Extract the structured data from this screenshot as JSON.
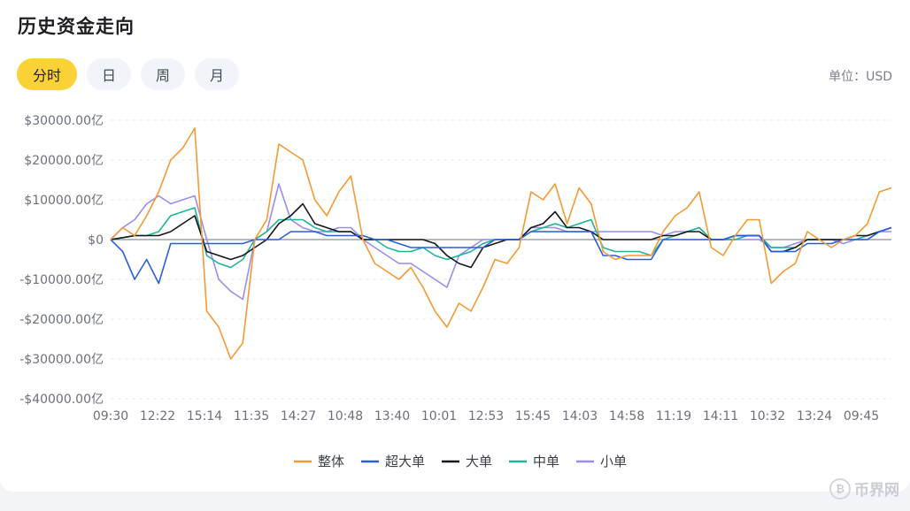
{
  "header": {
    "title": "历史资金走向",
    "unit": "单位：USD"
  },
  "tabs": [
    {
      "label": "分时",
      "active": true
    },
    {
      "label": "日",
      "active": false
    },
    {
      "label": "周",
      "active": false
    },
    {
      "label": "月",
      "active": false
    }
  ],
  "watermark": {
    "text": "币界网",
    "icon": "bitcoin-coin-icon"
  },
  "colors": {
    "accent": "#fbd235"
  },
  "chart_data": {
    "type": "line",
    "title": "",
    "xlabel": "",
    "ylabel": "",
    "ylim": [
      -40000,
      30000
    ],
    "y_ticks": [
      30000,
      20000,
      10000,
      0,
      -10000,
      -20000,
      -30000,
      -40000
    ],
    "y_tick_labels": [
      "$30000.00亿",
      "$20000.00亿",
      "$10000.00亿",
      "$0",
      "-$10000.00亿",
      "-$20000.00亿",
      "-$30000.00亿",
      "-$40000.00亿"
    ],
    "x_tick_labels": [
      "09:30",
      "12:22",
      "15:14",
      "11:35",
      "14:27",
      "10:48",
      "13:40",
      "10:01",
      "12:53",
      "15:45",
      "14:03",
      "14:58",
      "11:19",
      "14:11",
      "10:32",
      "13:24",
      "09:45"
    ],
    "grid": true,
    "legend_position": "bottom",
    "x_samples": 66,
    "series": [
      {
        "name": "整体",
        "color": "#f59a33",
        "values": [
          0,
          3000,
          1000,
          6000,
          12000,
          20000,
          23000,
          28000,
          -18000,
          -22000,
          -30000,
          -26000,
          0,
          5000,
          24000,
          22000,
          20000,
          10000,
          6000,
          12000,
          16000,
          0,
          -6000,
          -8000,
          -10000,
          -7000,
          -12000,
          -18000,
          -22000,
          -16000,
          -18000,
          -12000,
          -5000,
          -6000,
          -2000,
          12000,
          10000,
          14000,
          4000,
          13000,
          9000,
          -3000,
          -5000,
          -4000,
          -4000,
          -4000,
          2000,
          6000,
          8000,
          12000,
          -2000,
          -4000,
          1000,
          5000,
          5000,
          -11000,
          -8000,
          -6000,
          2000,
          0,
          -2000,
          0,
          1000,
          4000,
          12000,
          13000
        ]
      },
      {
        "name": "超大单",
        "color": "#2b5fd9",
        "values": [
          0,
          -3000,
          -10000,
          -5000,
          -11000,
          -1000,
          -1000,
          -1000,
          -1000,
          -1000,
          -1000,
          -1000,
          0,
          0,
          0,
          2000,
          2000,
          2000,
          1000,
          1000,
          1000,
          1000,
          0,
          0,
          -1000,
          -2000,
          -2000,
          -2000,
          -2000,
          -2000,
          -2000,
          -2000,
          0,
          0,
          0,
          2000,
          2000,
          2000,
          2000,
          2000,
          2000,
          -4000,
          -4000,
          -5000,
          -5000,
          -5000,
          0,
          0,
          0,
          0,
          0,
          0,
          1000,
          1000,
          1000,
          -3000,
          -3000,
          -3000,
          -1000,
          -1000,
          -1000,
          0,
          0,
          0,
          2000,
          3000
        ]
      },
      {
        "name": "大单",
        "color": "#15171c",
        "values": [
          0,
          500,
          1000,
          1000,
          1000,
          2000,
          4000,
          6000,
          -3000,
          -4000,
          -5000,
          -4000,
          -2000,
          0,
          4000,
          6000,
          9000,
          4000,
          3000,
          2000,
          2000,
          0,
          0,
          0,
          0,
          0,
          0,
          -1000,
          -4000,
          -6000,
          -7000,
          -2000,
          -1000,
          0,
          0,
          3000,
          4000,
          7000,
          3000,
          3000,
          2000,
          0,
          0,
          0,
          0,
          0,
          1000,
          1000,
          2000,
          2000,
          0,
          0,
          1000,
          1000,
          1000,
          -3000,
          -3000,
          -2000,
          0,
          0,
          0,
          0,
          1000,
          1000,
          2000,
          3000
        ]
      },
      {
        "name": "中单",
        "color": "#1fb39a",
        "values": [
          0,
          500,
          1000,
          1000,
          2000,
          6000,
          7000,
          8000,
          -4000,
          -6000,
          -7000,
          -5000,
          0,
          2000,
          5000,
          5000,
          5000,
          3000,
          2000,
          2000,
          2000,
          0,
          0,
          -2000,
          -3000,
          -3000,
          -2000,
          -4000,
          -5000,
          -4000,
          -3000,
          -1000,
          0,
          0,
          0,
          2000,
          3000,
          4000,
          3000,
          4000,
          5000,
          -2000,
          -3000,
          -3000,
          -3000,
          -4000,
          0,
          1000,
          2000,
          3000,
          0,
          0,
          0,
          1000,
          1000,
          -2000,
          -2000,
          -2000,
          0,
          0,
          0,
          0,
          0,
          1000,
          2000,
          3000
        ]
      },
      {
        "name": "小单",
        "color": "#9b8cf0",
        "values": [
          0,
          3000,
          5000,
          9000,
          11000,
          9000,
          10000,
          11000,
          0,
          -10000,
          -13000,
          -15000,
          0,
          2000,
          14000,
          5000,
          3000,
          2000,
          2000,
          3000,
          3000,
          0,
          -2000,
          -4000,
          -6000,
          -6000,
          -8000,
          -10000,
          -12000,
          -4000,
          -2000,
          0,
          0,
          0,
          0,
          3000,
          3000,
          3000,
          2000,
          2000,
          2000,
          2000,
          2000,
          2000,
          2000,
          2000,
          1000,
          2000,
          2000,
          3000,
          0,
          0,
          0,
          0,
          0,
          -2000,
          -2000,
          -1000,
          0,
          0,
          0,
          -1000,
          0,
          0,
          2000,
          2000
        ]
      }
    ]
  }
}
